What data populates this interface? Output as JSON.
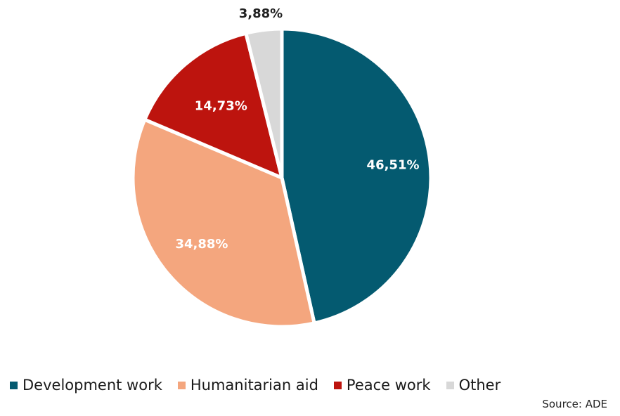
{
  "chart_data": {
    "type": "pie",
    "slices": [
      {
        "name": "Development work",
        "value": 46.51,
        "label": "46,51%",
        "color": "#045a70",
        "label_color": "#ffffff"
      },
      {
        "name": "Humanitarian aid",
        "value": 34.88,
        "label": "34,88%",
        "color": "#f4a67e",
        "label_color": "#ffffff"
      },
      {
        "name": "Peace work",
        "value": 14.73,
        "label": "14,73%",
        "color": "#bd140e",
        "label_color": "#ffffff"
      },
      {
        "name": "Other",
        "value": 3.88,
        "label": "3,88%",
        "color": "#d8d8d8",
        "label_color": "#222222"
      }
    ],
    "legend_position": "bottom",
    "source": "Source: ADE"
  }
}
